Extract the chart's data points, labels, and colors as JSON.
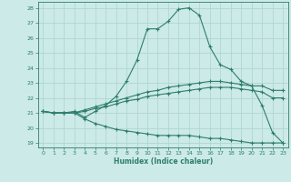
{
  "bg_color": "#cceae7",
  "grid_color": "#aad4d0",
  "line_color": "#2e7d6e",
  "xlabel": "Humidex (Indice chaleur)",
  "xlim": [
    -0.5,
    23.5
  ],
  "ylim": [
    18.7,
    28.4
  ],
  "yticks": [
    19,
    20,
    21,
    22,
    23,
    24,
    25,
    26,
    27,
    28
  ],
  "xticks": [
    0,
    1,
    2,
    3,
    4,
    5,
    6,
    7,
    8,
    9,
    10,
    11,
    12,
    13,
    14,
    15,
    16,
    17,
    18,
    19,
    20,
    21,
    22,
    23
  ],
  "curve1_x": [
    0,
    1,
    2,
    3,
    4,
    5,
    6,
    7,
    8,
    9,
    10,
    11,
    12,
    13,
    14,
    15,
    16,
    17,
    18,
    19,
    20,
    21,
    22,
    23
  ],
  "curve1_y": [
    21.1,
    21.0,
    21.0,
    21.1,
    20.7,
    21.1,
    21.5,
    22.1,
    23.1,
    24.5,
    26.6,
    26.6,
    27.1,
    27.9,
    28.0,
    27.5,
    25.4,
    24.2,
    23.9,
    23.1,
    22.8,
    21.5,
    19.7,
    19.0
  ],
  "curve2_x": [
    0,
    1,
    2,
    3,
    4,
    5,
    6,
    7,
    8,
    9,
    10,
    11,
    12,
    13,
    14,
    15,
    16,
    17,
    18,
    19,
    20,
    21,
    22,
    23
  ],
  "curve2_y": [
    21.1,
    21.0,
    21.0,
    21.0,
    21.2,
    21.4,
    21.6,
    21.8,
    22.0,
    22.2,
    22.4,
    22.5,
    22.7,
    22.8,
    22.9,
    23.0,
    23.1,
    23.1,
    23.0,
    22.9,
    22.8,
    22.8,
    22.5,
    22.5
  ],
  "curve3_x": [
    0,
    1,
    2,
    3,
    4,
    5,
    6,
    7,
    8,
    9,
    10,
    11,
    12,
    13,
    14,
    15,
    16,
    17,
    18,
    19,
    20,
    21,
    22,
    23
  ],
  "curve3_y": [
    21.1,
    21.0,
    21.0,
    21.0,
    21.1,
    21.3,
    21.4,
    21.6,
    21.8,
    21.9,
    22.1,
    22.2,
    22.3,
    22.4,
    22.5,
    22.6,
    22.7,
    22.7,
    22.7,
    22.6,
    22.5,
    22.4,
    22.0,
    22.0
  ],
  "curve4_x": [
    0,
    1,
    2,
    3,
    4,
    5,
    6,
    7,
    8,
    9,
    10,
    11,
    12,
    13,
    14,
    15,
    16,
    17,
    18,
    19,
    20,
    21,
    22,
    23
  ],
  "curve4_y": [
    21.1,
    21.0,
    21.0,
    21.0,
    20.6,
    20.3,
    20.1,
    19.9,
    19.8,
    19.7,
    19.6,
    19.5,
    19.5,
    19.5,
    19.5,
    19.4,
    19.3,
    19.3,
    19.2,
    19.1,
    19.0,
    19.0,
    19.0,
    19.0
  ]
}
